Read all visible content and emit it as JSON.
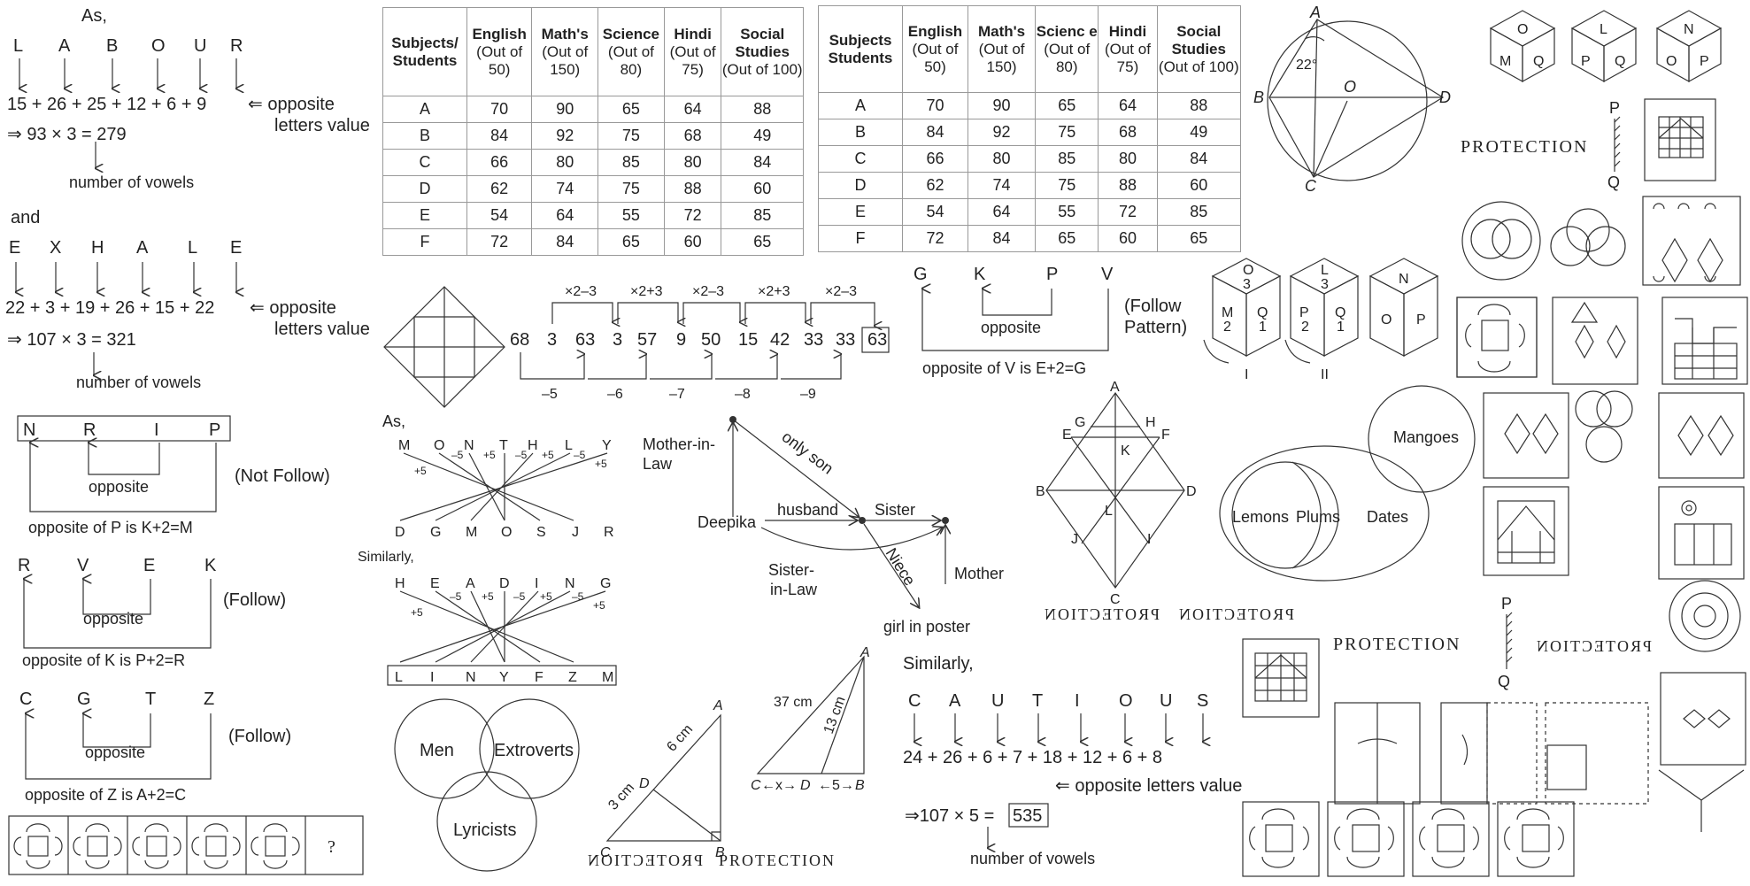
{
  "ex1": {
    "as": "As,",
    "letters1": [
      "L",
      "A",
      "B",
      "O",
      "U",
      "R"
    ],
    "eq1": "15 + 26 + 25 + 12 + 6 + 9",
    "opp1a": "⇐ opposite",
    "opp1b": "letters value",
    "res1": "⇒ 93 × 3 = 279",
    "vow1": "number of vowels",
    "and": "and",
    "letters2": [
      "E",
      "X",
      "H",
      "A",
      "L",
      "E"
    ],
    "eq2": "22 + 3 + 19 + 26 + 15 + 22",
    "opp2a": "⇐ opposite",
    "opp2b": "letters value",
    "res2": "⇒ 107 × 3 = 321",
    "vow2": "number of vowels"
  },
  "pat": {
    "nrip": [
      "N",
      "R",
      "I",
      "P"
    ],
    "opposite": "opposite",
    "notfollow": "(Not Follow)",
    "nrip_note": "opposite of P is K+2=M",
    "rvek": [
      "R",
      "V",
      "E",
      "K"
    ],
    "follow": "(Follow)",
    "rvek_note": "opposite of K is P+2=R",
    "cgtz": [
      "C",
      "G",
      "T",
      "Z"
    ],
    "cgtz_note": "opposite of Z is A+2=C",
    "gkpv": [
      "G",
      "K",
      "P",
      "V"
    ],
    "followpattern1": "(Follow",
    "followpattern2": "Pattern)",
    "gkpv_note": "opposite of V is E+2=G",
    "question": "?"
  },
  "table1": {
    "h0a": "Subjects/",
    "h0b": "Students",
    "h1": "English",
    "h1s": "(Out of 50)",
    "h2": "Math's",
    "h2s": "(Out of 150)",
    "h3": "Science",
    "h3s": "(Out of 80)",
    "h4": "Hindi",
    "h4s": "(Out of 75)",
    "h5": "Social Studies",
    "h5s": "(Out of 100)",
    "rows": [
      [
        "A",
        "70",
        "90",
        "65",
        "64",
        "88"
      ],
      [
        "B",
        "84",
        "92",
        "75",
        "68",
        "49"
      ],
      [
        "C",
        "66",
        "80",
        "85",
        "80",
        "84"
      ],
      [
        "D",
        "62",
        "74",
        "75",
        "88",
        "60"
      ],
      [
        "E",
        "54",
        "64",
        "55",
        "72",
        "85"
      ],
      [
        "F",
        "72",
        "84",
        "65",
        "60",
        "65"
      ]
    ]
  },
  "table2": {
    "h0a": "Subjects",
    "h0b": "Students",
    "h1": "English",
    "h1s": "(Out of 50)",
    "h2": "Math's",
    "h2s": "(Out of 150)",
    "h3": "Scienc e",
    "h3s": "(Out of 80)",
    "h4": "Hindi",
    "h4s": "(Out of 75)",
    "h5": "Social Studies",
    "h5s": "(Out of 100)",
    "rows": [
      [
        "A",
        "70",
        "90",
        "65",
        "64",
        "88"
      ],
      [
        "B",
        "84",
        "92",
        "75",
        "68",
        "49"
      ],
      [
        "C",
        "66",
        "80",
        "85",
        "80",
        "84"
      ],
      [
        "D",
        "62",
        "74",
        "75",
        "88",
        "60"
      ],
      [
        "E",
        "54",
        "64",
        "55",
        "72",
        "85"
      ],
      [
        "F",
        "72",
        "84",
        "65",
        "60",
        "65"
      ]
    ]
  },
  "series": {
    "nums": [
      "68",
      "3",
      "63",
      "3",
      "57",
      "9",
      "50",
      "15",
      "42",
      "33",
      "33",
      "63"
    ],
    "top": [
      "×2–3",
      "×2+3",
      "×2–3",
      "×2+3",
      "×2–3"
    ],
    "bottom": [
      "–5",
      "–6",
      "–7",
      "–8",
      "–9"
    ]
  },
  "cubes": {
    "c1": [
      "O",
      "M",
      "Q"
    ],
    "c2": [
      "L",
      "P",
      "Q"
    ],
    "c3": [
      "N",
      "O",
      "P"
    ],
    "d1": [
      "O",
      "3",
      "M",
      "2",
      "Q",
      "1"
    ],
    "d2": [
      "L",
      "3",
      "P",
      "2",
      "Q",
      "1"
    ],
    "d3": [
      "N",
      "O",
      "P"
    ],
    "lab1": "I",
    "lab2": "II"
  },
  "circle": {
    "A": "A",
    "B": "B",
    "C": "C",
    "D": "D",
    "O": "O",
    "angle": "22°"
  },
  "protection": {
    "word": "PROTECTION",
    "P": "P",
    "Q": "Q"
  },
  "code": {
    "as": "As,",
    "top1": [
      "M",
      "O",
      "N",
      "T",
      "H",
      "L",
      "Y"
    ],
    "bot1": [
      "D",
      "G",
      "M",
      "O",
      "S",
      "J",
      "R"
    ],
    "sim": "Similarly,",
    "top2": [
      "H",
      "E",
      "A",
      "D",
      "I",
      "N",
      "G"
    ],
    "bot2": [
      "L",
      "I",
      "N",
      "Y",
      "F",
      "Z",
      "M"
    ],
    "p5": "+5",
    "m5": "–5"
  },
  "venn1": {
    "a": "Men",
    "b": "Extroverts",
    "c": "Lyricists"
  },
  "family": {
    "mil1": "Mother-in-",
    "mil2": "Law",
    "onlyson": "only son",
    "deepika": "Deepika",
    "husband": "husband",
    "sister": "Sister",
    "sil1": "Sister-",
    "sil2": "in-Law",
    "niece": "Niece",
    "mother": "Mother",
    "girl": "girl in poster"
  },
  "tri1": {
    "A": "A",
    "B": "B",
    "C": "C",
    "D": "D",
    "six": "6 cm",
    "three": "3 cm"
  },
  "tri2": {
    "A": "A",
    "B": "B",
    "C": "C",
    "D": "D",
    "c37": "37 cm",
    "c13": "13 cm",
    "x": "←x→",
    "five": "←5→"
  },
  "cautious": {
    "sim": "Similarly,",
    "letters": [
      "C",
      "A",
      "U",
      "T",
      "I",
      "O",
      "U",
      "S"
    ],
    "eq": "24 + 26 + 6 + 7 + 18 + 12 + 6 + 8",
    "opp": "⇐ opposite letters value",
    "res": "⇒107 × 5 =",
    "box": "535",
    "vow": "number of vowels"
  },
  "rhombus": {
    "A": "A",
    "B": "B",
    "C": "C",
    "D": "D",
    "E": "E",
    "F": "F",
    "G": "G",
    "H": "H",
    "I": "I",
    "J": "J",
    "K": "K",
    "L": "L"
  },
  "venn2": {
    "mangoes": "Mangoes",
    "lemons": "Lemons",
    "plums": "Plums",
    "dates": "Dates"
  },
  "mirror": {
    "text": "PROTECTION"
  }
}
